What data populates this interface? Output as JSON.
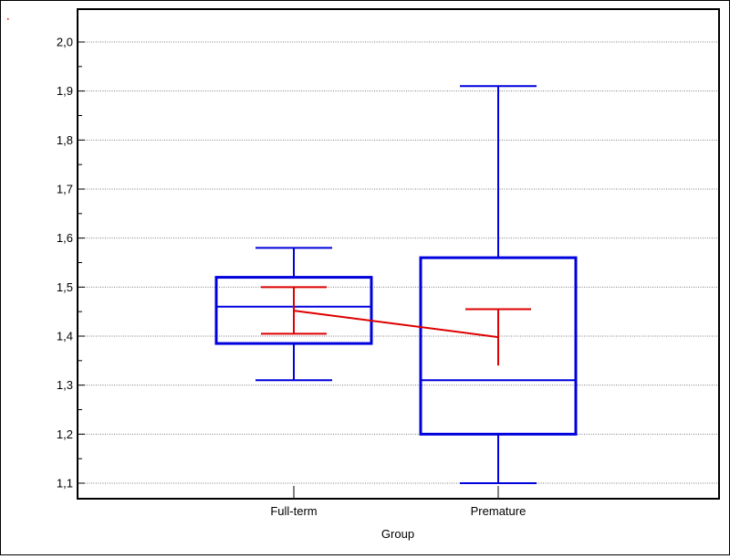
{
  "chart_data": {
    "type": "box",
    "categories": [
      "Full-term",
      "Premature"
    ],
    "xlabel": "Group",
    "ylabel": "",
    "ylim": [
      1.08,
      2.03
    ],
    "yticks": [
      1.1,
      1.2,
      1.3,
      1.4,
      1.5,
      1.6,
      1.7,
      1.8,
      1.9,
      2.0
    ],
    "ytick_labels": [
      "1,1",
      "1,2",
      "1,3",
      "1,4",
      "1,5",
      "1,6",
      "1,7",
      "1,8",
      "1,9",
      "2,0"
    ],
    "grid": true,
    "boxes": [
      {
        "category": "Full-term",
        "whisker_low": 1.31,
        "q1": 1.385,
        "median": 1.46,
        "q3": 1.52,
        "whisker_high": 1.58
      },
      {
        "category": "Premature",
        "whisker_low": 1.1,
        "q1": 1.2,
        "median": 1.31,
        "q3": 1.56,
        "whisker_high": 1.91
      }
    ],
    "means": [
      {
        "category": "Full-term",
        "mean": 1.452,
        "ci_low": 1.405,
        "ci_high": 1.5
      },
      {
        "category": "Premature",
        "mean": 1.398,
        "ci_low": 1.34,
        "ci_high": 1.455
      }
    ],
    "colors": {
      "box": "#0000dd",
      "mean": "#dd0000",
      "grid": "#808080"
    }
  }
}
